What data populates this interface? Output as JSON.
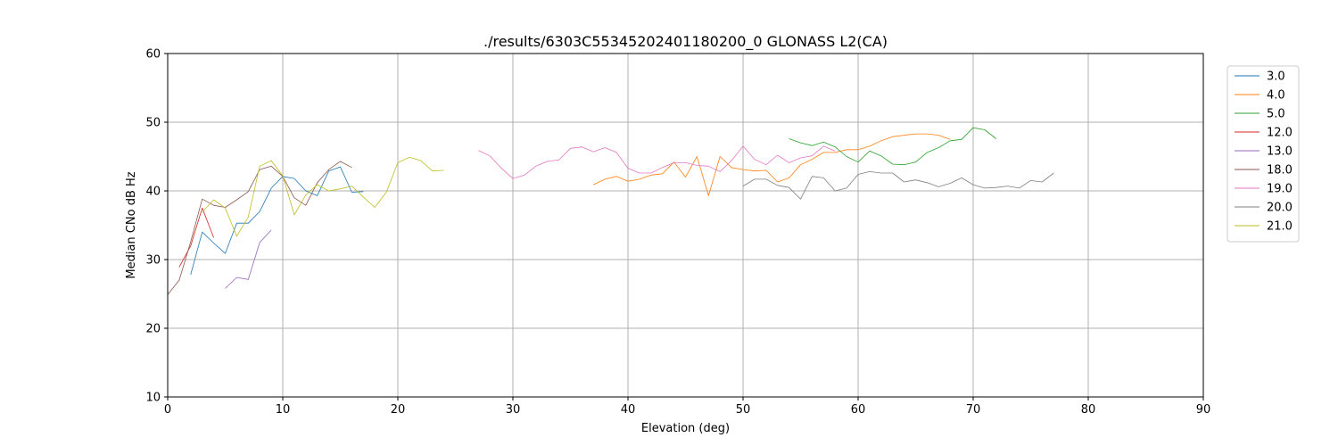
{
  "chart_data": {
    "type": "line",
    "title": "./results/6303C55345202401180200_0 GLONASS L2(CA)",
    "xlabel": "Elevation (deg)",
    "ylabel": "Median CNo dB Hz",
    "xlim": [
      0,
      90
    ],
    "ylim": [
      10,
      60
    ],
    "xticks": [
      0,
      10,
      20,
      30,
      40,
      50,
      60,
      70,
      80,
      90
    ],
    "yticks": [
      10,
      20,
      30,
      40,
      50,
      60
    ],
    "grid": true,
    "legend_position": "right",
    "series": [
      {
        "name": "3.0",
        "color": "#1f77b4",
        "x": [
          2,
          3,
          4,
          5,
          6,
          7,
          8,
          9,
          10,
          11,
          12,
          13,
          14,
          15,
          16,
          17
        ],
        "y": [
          27.8,
          34.0,
          32.4,
          30.9,
          35.3,
          35.3,
          37.0,
          40.4,
          42.1,
          41.8,
          40.0,
          39.3,
          42.9,
          43.5,
          39.8,
          39.9
        ]
      },
      {
        "name": "4.0",
        "color": "#ff7f0e",
        "x": [
          37,
          38,
          39,
          40,
          41,
          42,
          43,
          44,
          45,
          46,
          47,
          48,
          49,
          50,
          51,
          52,
          53,
          54,
          55,
          56,
          57,
          58,
          59,
          60,
          61,
          62,
          63,
          64,
          65,
          66,
          67,
          68
        ],
        "y": [
          40.9,
          41.7,
          42.1,
          41.4,
          41.7,
          42.3,
          42.5,
          44.2,
          42.0,
          45.0,
          39.3,
          45.0,
          43.4,
          43.1,
          42.9,
          43.0,
          41.3,
          41.9,
          43.8,
          44.6,
          45.6,
          45.6,
          46.0,
          46.0,
          46.5,
          47.3,
          47.9,
          48.1,
          48.3,
          48.3,
          48.1,
          47.5
        ]
      },
      {
        "name": "5.0",
        "color": "#2ca02c",
        "x": [
          54,
          55,
          56,
          57,
          58,
          59,
          60,
          61,
          62,
          63,
          64,
          65,
          66,
          67,
          68,
          69,
          70,
          71,
          72
        ],
        "y": [
          47.6,
          47.0,
          46.6,
          47.1,
          46.4,
          45.0,
          44.2,
          45.8,
          45.1,
          43.9,
          43.8,
          44.2,
          45.6,
          46.3,
          47.3,
          47.5,
          49.2,
          48.9,
          47.6
        ]
      },
      {
        "name": "12.0",
        "color": "#d62728",
        "x": [
          1,
          2,
          3,
          4
        ],
        "y": [
          28.9,
          32.0,
          37.5,
          33.2
        ]
      },
      {
        "name": "13.0",
        "color": "#9467bd",
        "x": [
          5,
          6,
          7,
          8,
          9
        ],
        "y": [
          25.8,
          27.4,
          27.1,
          32.5,
          34.3
        ]
      },
      {
        "name": "18.0",
        "color": "#8c564b",
        "x": [
          0,
          1,
          2,
          3,
          4,
          5,
          6,
          7,
          8,
          9,
          10,
          11,
          12,
          13,
          14,
          15,
          16
        ],
        "y": [
          24.9,
          27.0,
          32.6,
          38.8,
          37.9,
          37.6,
          38.7,
          39.9,
          43.1,
          43.6,
          42.1,
          39.0,
          37.9,
          41.2,
          43.1,
          44.3,
          43.4
        ]
      },
      {
        "name": "19.0",
        "color": "#e377c2",
        "x": [
          27,
          28,
          29,
          30,
          31,
          32,
          33,
          34,
          35,
          36,
          37,
          38,
          39,
          40,
          41,
          42,
          43,
          44,
          45,
          46,
          47,
          48,
          49,
          50,
          51,
          52,
          53,
          54,
          55,
          56,
          57,
          58
        ],
        "y": [
          45.9,
          45.1,
          43.3,
          41.8,
          42.3,
          43.6,
          44.3,
          44.5,
          46.2,
          46.4,
          45.7,
          46.3,
          45.6,
          43.3,
          42.6,
          42.6,
          43.4,
          44.1,
          44.1,
          43.7,
          43.6,
          42.8,
          44.4,
          46.5,
          44.6,
          43.8,
          45.2,
          44.1,
          44.8,
          45.1,
          46.5,
          45.8
        ]
      },
      {
        "name": "20.0",
        "color": "#7f7f7f",
        "x": [
          50,
          51,
          52,
          53,
          54,
          55,
          56,
          57,
          58,
          59,
          60,
          61,
          62,
          63,
          64,
          65,
          66,
          67,
          68,
          69,
          70,
          71,
          72,
          73,
          74,
          75,
          76,
          77
        ],
        "y": [
          40.7,
          41.7,
          41.7,
          40.8,
          40.5,
          38.8,
          42.1,
          41.9,
          40.0,
          40.4,
          42.4,
          42.8,
          42.6,
          42.6,
          41.3,
          41.6,
          41.2,
          40.6,
          41.1,
          41.9,
          40.9,
          40.4,
          40.5,
          40.7,
          40.4,
          41.5,
          41.3,
          42.6
        ]
      },
      {
        "name": "21.0",
        "color": "#bcbd22",
        "x": [
          3,
          4,
          5,
          6,
          7,
          8,
          9,
          10,
          11,
          12,
          13,
          14,
          15,
          16,
          17,
          18,
          19,
          20,
          21,
          22,
          23,
          24
        ],
        "y": [
          36.9,
          38.7,
          37.5,
          33.4,
          36.2,
          43.6,
          44.4,
          42.2,
          36.5,
          39.4,
          40.9,
          40.0,
          40.3,
          40.7,
          39.1,
          37.6,
          39.8,
          44.1,
          44.9,
          44.4,
          42.9,
          43.0
        ]
      }
    ]
  }
}
